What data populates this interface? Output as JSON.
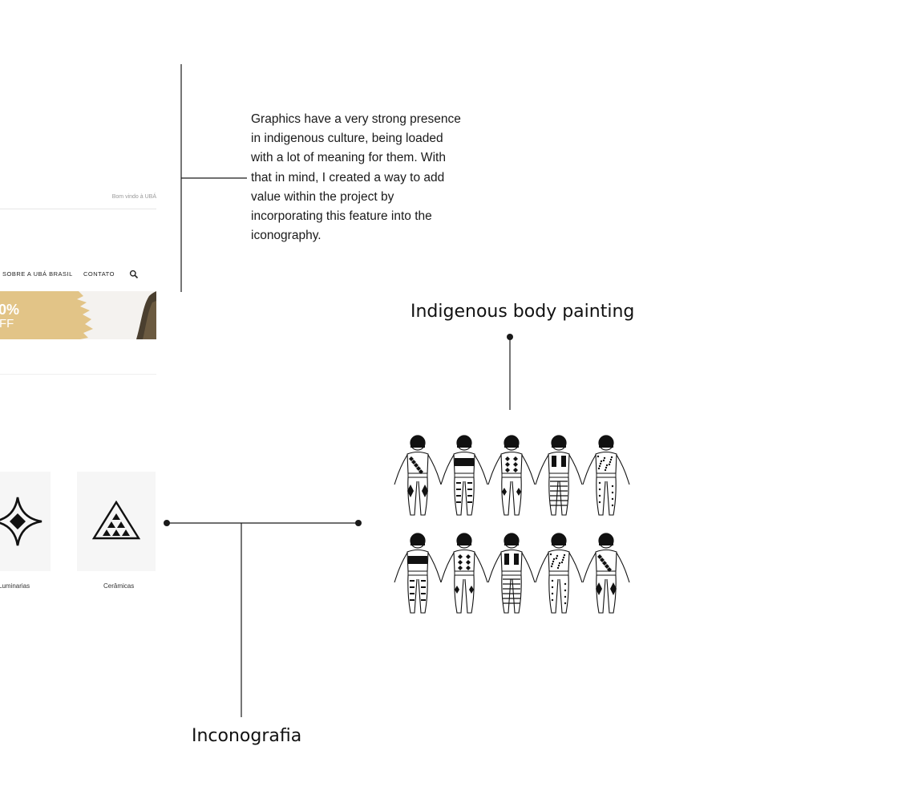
{
  "mockup": {
    "welcome_text": "Bom vindo à UBÁ",
    "nav": [
      {
        "label": "SOBRE A UBÁ BRASIL"
      },
      {
        "label": "CONTATO"
      }
    ],
    "banner": {
      "percent_text": "0%",
      "off_text": "FF"
    },
    "categories": [
      {
        "label": "Luminarias",
        "icon": "diamond-ornament-icon"
      },
      {
        "label": "Cerâmicas",
        "icon": "triangle-dots-icon"
      }
    ]
  },
  "annotations": {
    "description": "Graphics have a very strong presence in indigenous culture, being loaded with a lot of meaning for them. With that in mind, I created a way to add value within the project by incorporating this feature into the iconography.",
    "body_painting_title": "Indigenous body painting",
    "iconography_title": "Inconografia"
  },
  "colors": {
    "line": "#1a1a1a",
    "banner_gold": "#e2c487",
    "card_bg": "#f6f6f6"
  }
}
